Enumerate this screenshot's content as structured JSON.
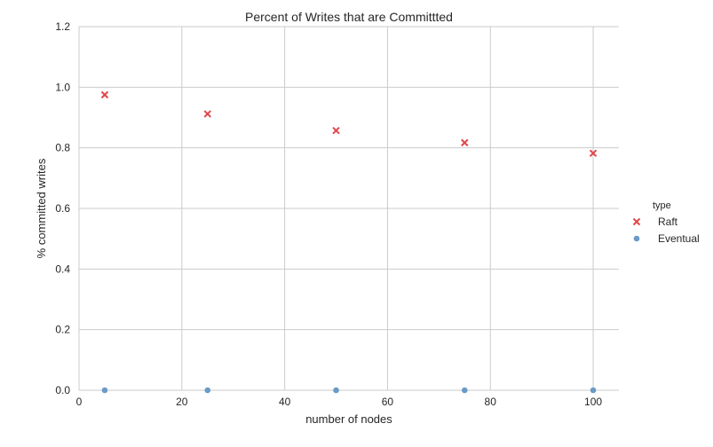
{
  "chart_data": {
    "type": "scatter",
    "title": "Percent of Writes that are Committted",
    "xlabel": "number of nodes",
    "ylabel": "% committed writes",
    "xlim": [
      0,
      105
    ],
    "ylim": [
      0,
      1.2
    ],
    "xticks": [
      0,
      20,
      40,
      60,
      80,
      100
    ],
    "xtick_labels": [
      "0",
      "20",
      "40",
      "60",
      "80",
      "100"
    ],
    "yticks": [
      0.0,
      0.2,
      0.4,
      0.6,
      0.8,
      1.0,
      1.2
    ],
    "ytick_labels": [
      "0.0",
      "0.2",
      "0.4",
      "0.6",
      "0.8",
      "1.0",
      "1.2"
    ],
    "grid": true,
    "legend": {
      "title": "type",
      "placement": "right"
    },
    "series": [
      {
        "name": "Raft",
        "marker": "x",
        "color": "#e0474c",
        "x": [
          5,
          25,
          50,
          75,
          100
        ],
        "y": [
          0.975,
          0.912,
          0.857,
          0.817,
          0.782
        ]
      },
      {
        "name": "Eventual",
        "marker": "o",
        "color": "#6a9bc8",
        "x": [
          5,
          25,
          50,
          75,
          100
        ],
        "y": [
          0.0,
          0.0,
          0.0,
          0.0,
          0.0
        ]
      }
    ]
  }
}
